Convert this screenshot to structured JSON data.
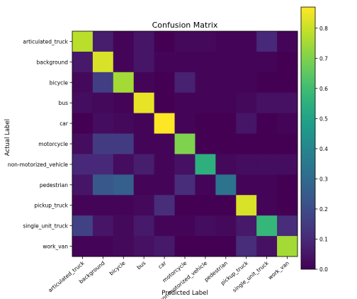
{
  "chart_data": {
    "type": "heatmap",
    "title": "Confusion Matrix",
    "xlabel": "Predicted Label",
    "ylabel": "Actual Label",
    "x_categories": [
      "articulated_truck",
      "background",
      "bicycle",
      "bus",
      "car",
      "motorcycle",
      "non-motorized_vehicle",
      "pedestrian",
      "pickup_truck",
      "single_unit_truck",
      "work_van"
    ],
    "y_categories": [
      "articulated_truck",
      "background",
      "bicycle",
      "bus",
      "car",
      "motorcycle",
      "non-motorized_vehicle",
      "pedestrian",
      "pickup_truck",
      "single_unit_truck",
      "work_van"
    ],
    "matrix": [
      [
        0.78,
        0.07,
        0.01,
        0.05,
        0.0,
        0.02,
        0.02,
        0.01,
        0.01,
        0.1,
        0.01
      ],
      [
        0.06,
        0.82,
        0.01,
        0.05,
        0.01,
        0.01,
        0.01,
        0.01,
        0.01,
        0.01,
        0.0
      ],
      [
        0.02,
        0.16,
        0.75,
        0.01,
        0.0,
        0.08,
        0.01,
        0.01,
        0.01,
        0.0,
        0.0
      ],
      [
        0.03,
        0.02,
        0.01,
        0.84,
        0.0,
        0.01,
        0.01,
        0.01,
        0.02,
        0.04,
        0.04
      ],
      [
        0.0,
        0.03,
        0.02,
        0.01,
        0.87,
        0.01,
        0.0,
        0.0,
        0.05,
        0.0,
        0.01
      ],
      [
        0.03,
        0.15,
        0.15,
        0.01,
        0.01,
        0.7,
        0.0,
        0.0,
        0.0,
        0.0,
        0.0
      ],
      [
        0.1,
        0.1,
        0.03,
        0.07,
        0.01,
        0.04,
        0.55,
        0.02,
        0.03,
        0.03,
        0.03
      ],
      [
        0.05,
        0.24,
        0.26,
        0.01,
        0.01,
        0.11,
        0.01,
        0.33,
        0.01,
        0.01,
        0.0
      ],
      [
        0.01,
        0.01,
        0.01,
        0.02,
        0.11,
        0.0,
        0.0,
        0.0,
        0.82,
        0.01,
        0.0
      ],
      [
        0.17,
        0.05,
        0.02,
        0.06,
        0.01,
        0.01,
        0.03,
        0.02,
        0.06,
        0.58,
        0.11
      ],
      [
        0.01,
        0.01,
        0.02,
        0.04,
        0.06,
        0.0,
        0.0,
        0.0,
        0.11,
        0.04,
        0.75
      ]
    ],
    "colormap": "viridis",
    "colorbar": {
      "range": [
        0.0,
        0.87
      ],
      "ticks": [
        0.0,
        0.1,
        0.2,
        0.3,
        0.4,
        0.5,
        0.6,
        0.7,
        0.8
      ],
      "tick_labels": [
        "0.0",
        "0.1",
        "0.2",
        "0.3",
        "0.4",
        "0.5",
        "0.6",
        "0.7",
        "0.8"
      ]
    },
    "grid": false,
    "legend": "colorbar-right"
  }
}
